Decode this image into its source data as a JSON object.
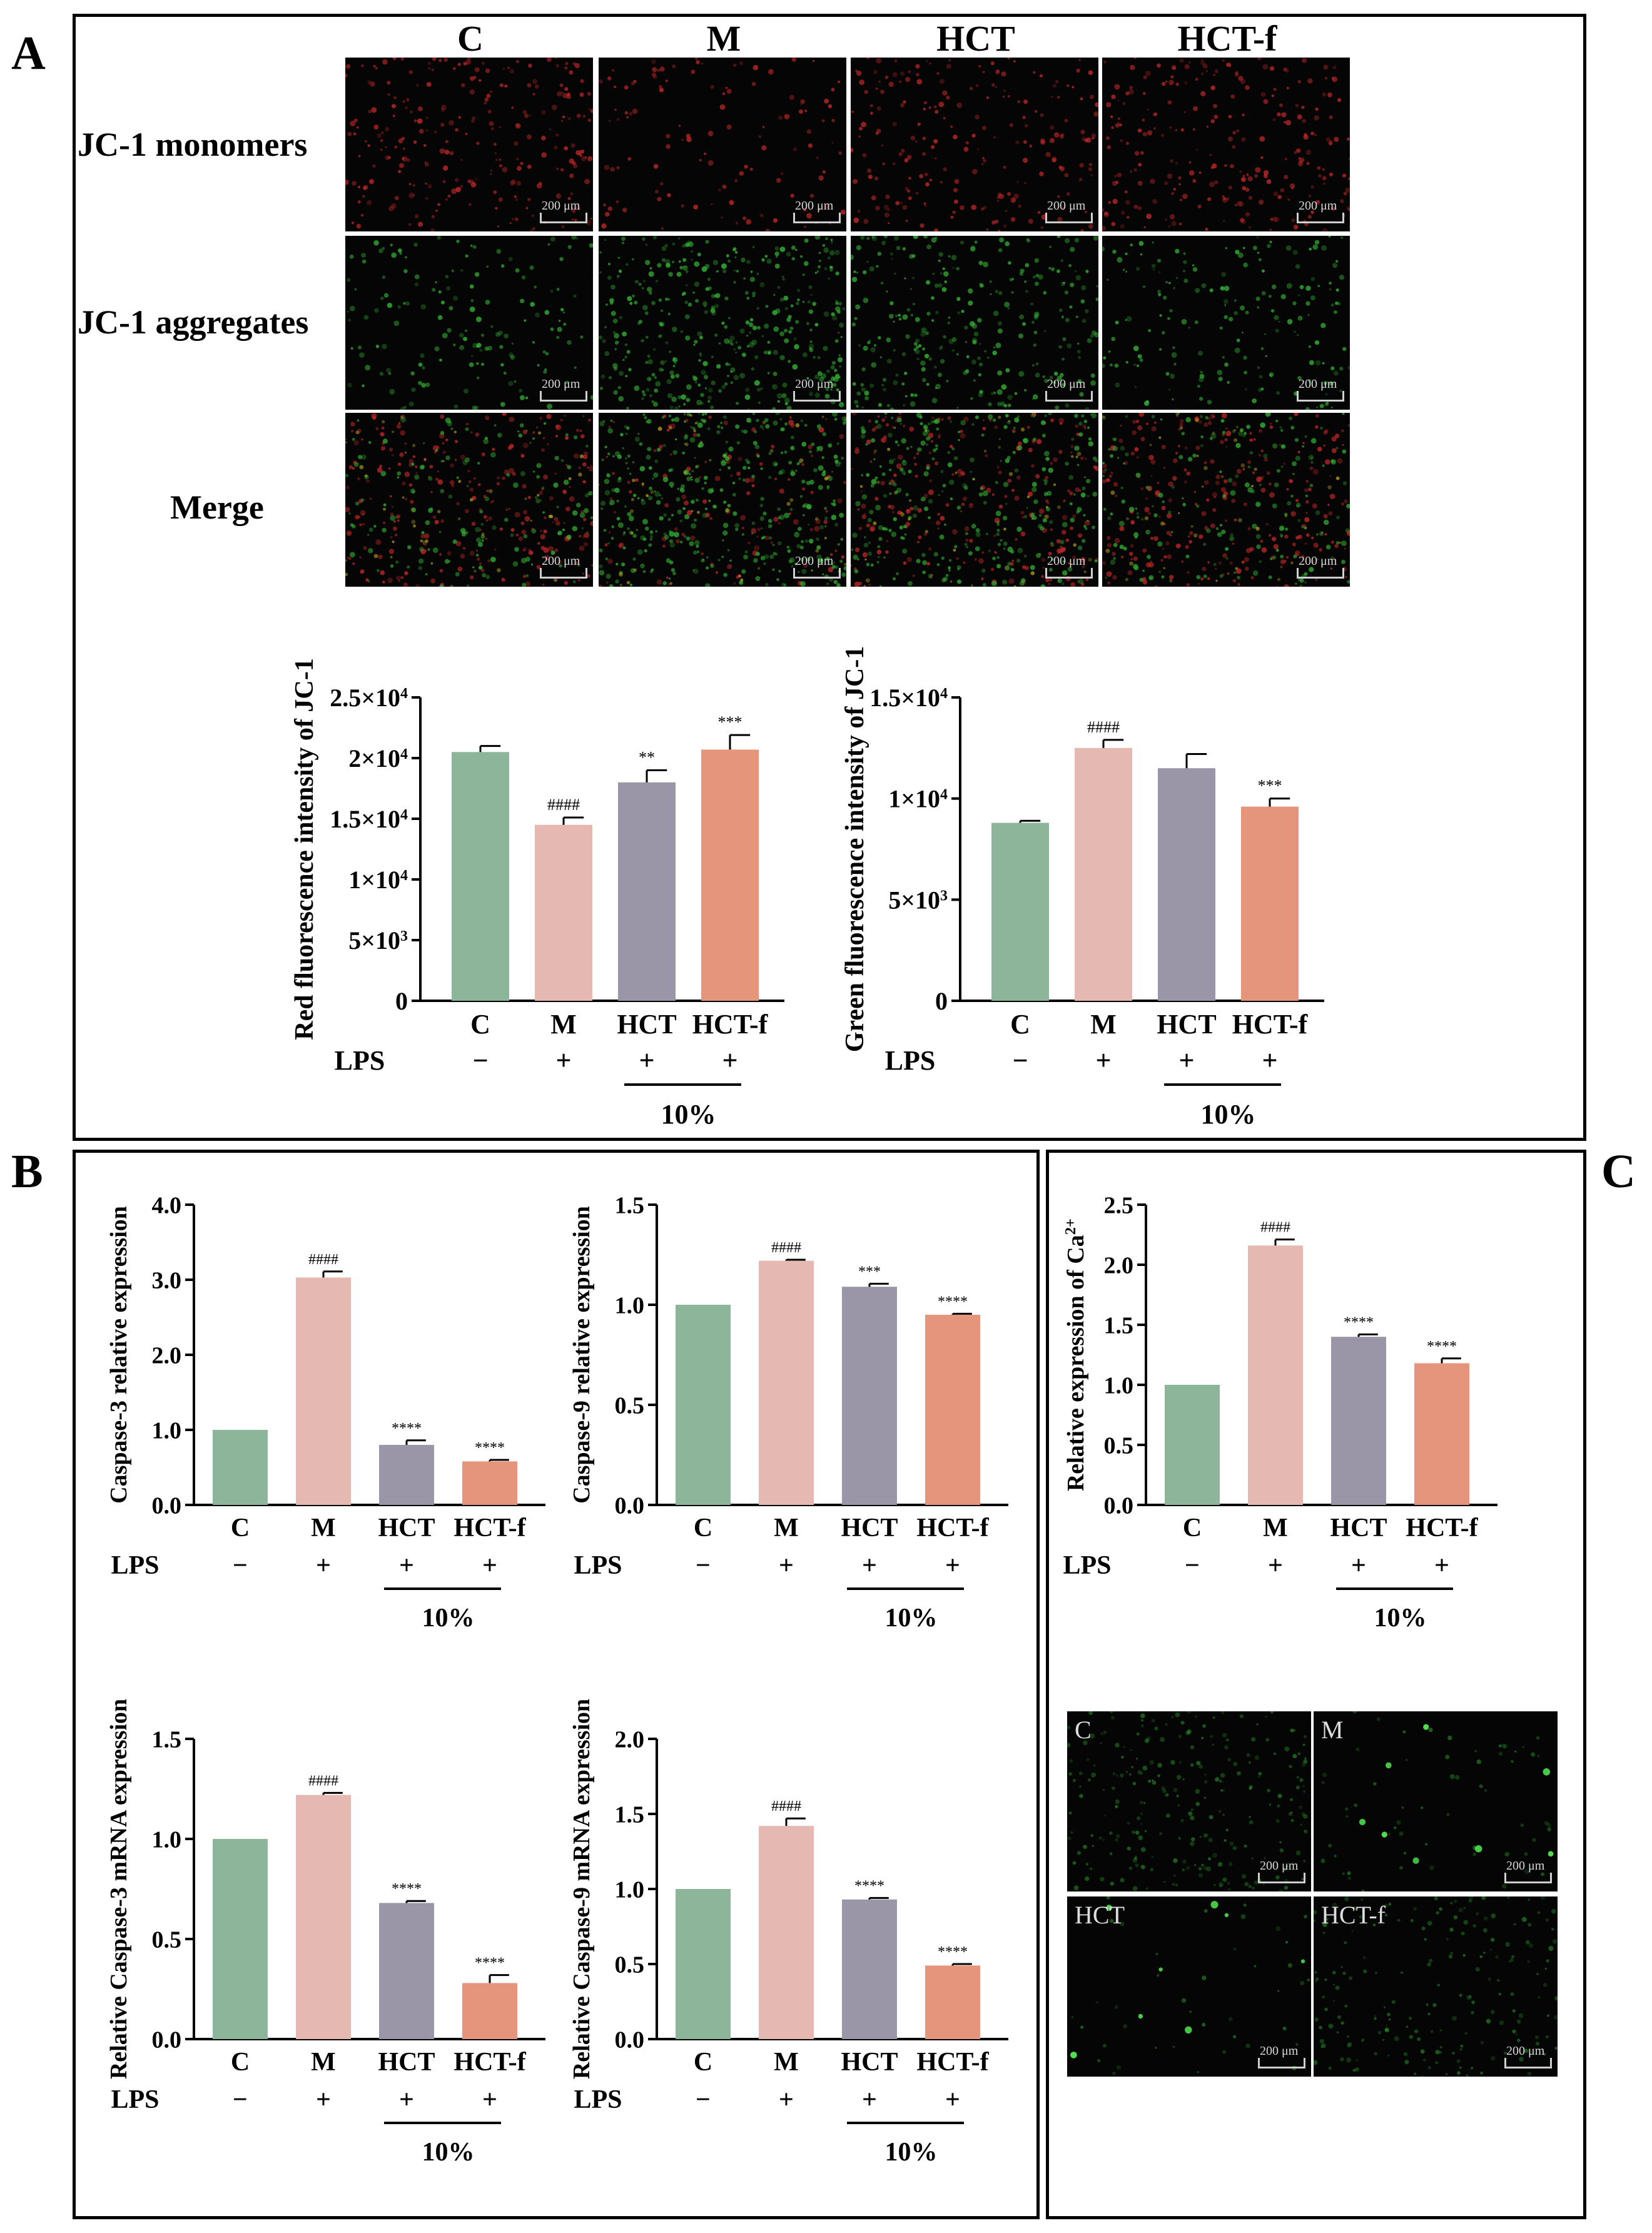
{
  "colors": {
    "C": "#8db59a",
    "M": "#e6b8b2",
    "HCT": "#9b96a7",
    "HCT-f": "#e4957c",
    "red_channel": "#b02020",
    "green_channel": "#2fa02f"
  },
  "panel_a": {
    "letter": "A",
    "columns": [
      "C",
      "M",
      "HCT",
      "HCT-f"
    ],
    "rows": [
      "JC-1 monomers",
      "JC-1 aggregates",
      "Merge"
    ],
    "scale_label": "200 μm"
  },
  "panel_b": {
    "letter": "B"
  },
  "panel_c": {
    "letter": "C",
    "tiles": [
      "C",
      "M",
      "HCT",
      "HCT-f"
    ],
    "scale_label": "200 μm"
  },
  "lps_row": {
    "label": "LPS",
    "signs": [
      "−",
      "+",
      "+",
      "+"
    ],
    "dose_label": "10%"
  },
  "charts": {
    "red": {
      "type": "bar",
      "ylabel": "Red fluorescence intensity of JC-1",
      "categories": [
        "C",
        "M",
        "HCT",
        "HCT-f"
      ],
      "values": [
        20500,
        14500,
        18000,
        20700
      ],
      "errors": [
        500,
        600,
        1000,
        1200
      ],
      "annotations": [
        "",
        "####",
        "**",
        "***"
      ],
      "ylim": [
        0,
        25000
      ],
      "ticks": [
        {
          "v": 0,
          "b": "0",
          "e": ""
        },
        {
          "v": 5000,
          "b": "5×10",
          "e": "3"
        },
        {
          "v": 10000,
          "b": "1×10",
          "e": "4"
        },
        {
          "v": 15000,
          "b": "1.5×10",
          "e": "4"
        },
        {
          "v": 20000,
          "b": "2×10",
          "e": "4"
        },
        {
          "v": 25000,
          "b": "2.5×10",
          "e": "4"
        }
      ]
    },
    "green": {
      "type": "bar",
      "ylabel": "Green fluorescence intensity of JC-1",
      "categories": [
        "C",
        "M",
        "HCT",
        "HCT-f"
      ],
      "values": [
        8800,
        12500,
        11500,
        9600
      ],
      "errors": [
        100,
        400,
        700,
        400
      ],
      "annotations": [
        "",
        "####",
        "",
        "***"
      ],
      "ylim": [
        0,
        15000
      ],
      "ticks": [
        {
          "v": 0,
          "b": "0",
          "e": ""
        },
        {
          "v": 5000,
          "b": "5×10",
          "e": "3"
        },
        {
          "v": 10000,
          "b": "1×10",
          "e": "4"
        },
        {
          "v": 15000,
          "b": "1.5×10",
          "e": "4"
        }
      ]
    },
    "casp3": {
      "type": "bar",
      "ylabel": "Caspase-3 relative expression",
      "categories": [
        "C",
        "M",
        "HCT",
        "HCT-f"
      ],
      "values": [
        1.0,
        3.03,
        0.8,
        0.58
      ],
      "errors": [
        0,
        0.08,
        0.06,
        0.02
      ],
      "annotations": [
        "",
        "####",
        "****",
        "****"
      ],
      "ylim": [
        0,
        4.0
      ],
      "ticks": [
        {
          "v": 0,
          "b": "0.0"
        },
        {
          "v": 1,
          "b": "1.0"
        },
        {
          "v": 2,
          "b": "2.0"
        },
        {
          "v": 3,
          "b": "3.0"
        },
        {
          "v": 4,
          "b": "4.0"
        }
      ]
    },
    "casp9": {
      "type": "bar",
      "ylabel": "Caspase-9 relative expression",
      "categories": [
        "C",
        "M",
        "HCT",
        "HCT-f"
      ],
      "values": [
        1.0,
        1.22,
        1.09,
        0.95
      ],
      "errors": [
        0,
        0.005,
        0.015,
        0.005
      ],
      "annotations": [
        "",
        "####",
        "***",
        "****"
      ],
      "ylim": [
        0,
        1.5
      ],
      "ticks": [
        {
          "v": 0,
          "b": "0.0"
        },
        {
          "v": 0.5,
          "b": "0.5"
        },
        {
          "v": 1.0,
          "b": "1.0"
        },
        {
          "v": 1.5,
          "b": "1.5"
        }
      ]
    },
    "casp3m": {
      "type": "bar",
      "ylabel": "Relative Caspase-3 mRNA expression",
      "categories": [
        "C",
        "M",
        "HCT",
        "HCT-f"
      ],
      "values": [
        1.0,
        1.22,
        0.68,
        0.28
      ],
      "errors": [
        0,
        0.01,
        0.01,
        0.04
      ],
      "annotations": [
        "",
        "####",
        "****",
        "****"
      ],
      "ylim": [
        0,
        1.5
      ],
      "ticks": [
        {
          "v": 0,
          "b": "0.0"
        },
        {
          "v": 0.5,
          "b": "0.5"
        },
        {
          "v": 1.0,
          "b": "1.0"
        },
        {
          "v": 1.5,
          "b": "1.5"
        }
      ]
    },
    "casp9m": {
      "type": "bar",
      "ylabel": "Relative Caspase-9 mRNA expression",
      "categories": [
        "C",
        "M",
        "HCT",
        "HCT-f"
      ],
      "values": [
        1.0,
        1.42,
        0.93,
        0.49
      ],
      "errors": [
        0,
        0.05,
        0.01,
        0.01
      ],
      "annotations": [
        "",
        "####",
        "****",
        "****"
      ],
      "ylim": [
        0,
        2.0
      ],
      "ticks": [
        {
          "v": 0,
          "b": "0.0"
        },
        {
          "v": 0.5,
          "b": "0.5"
        },
        {
          "v": 1.0,
          "b": "1.0"
        },
        {
          "v": 1.5,
          "b": "1.5"
        },
        {
          "v": 2.0,
          "b": "2.0"
        }
      ]
    },
    "ca": {
      "type": "bar",
      "ylabel": "Relative expression of Ca",
      "ylabel_sup": "2+",
      "categories": [
        "C",
        "M",
        "HCT",
        "HCT-f"
      ],
      "values": [
        1.0,
        2.16,
        1.4,
        1.18
      ],
      "errors": [
        0,
        0.05,
        0.02,
        0.04
      ],
      "annotations": [
        "",
        "####",
        "****",
        "****"
      ],
      "ylim": [
        0,
        2.5
      ],
      "ticks": [
        {
          "v": 0,
          "b": "0.0"
        },
        {
          "v": 0.5,
          "b": "0.5"
        },
        {
          "v": 1.0,
          "b": "1.0"
        },
        {
          "v": 1.5,
          "b": "1.5"
        },
        {
          "v": 2.0,
          "b": "2.0"
        },
        {
          "v": 2.5,
          "b": "2.5"
        }
      ]
    }
  }
}
